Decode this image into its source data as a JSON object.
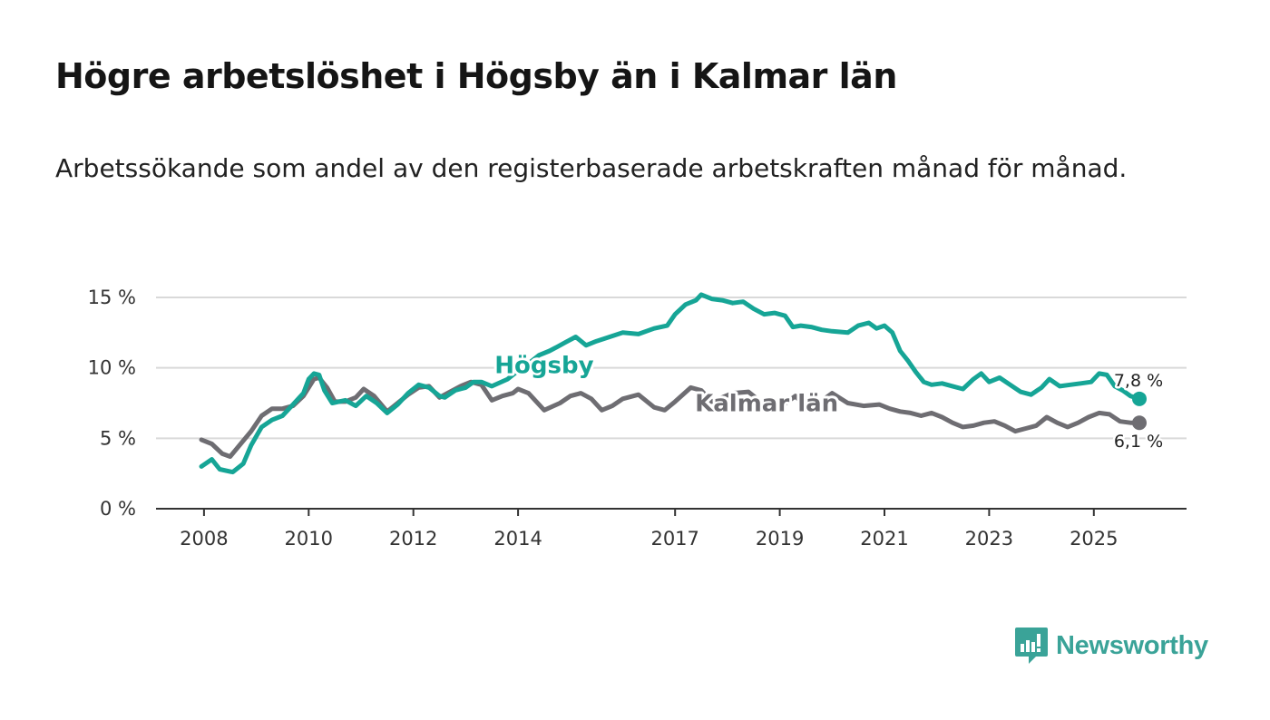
{
  "title": "Högre arbetslöshet i Högsby än i Kalmar län",
  "subtitle": "Arbetssökande som andel av den registerbaserade arbetskraften månad för månad.",
  "brand": {
    "name": "Newsworthy",
    "icon": "newsworthy-logo-icon"
  },
  "colors": {
    "hogsby": "#16a596",
    "kalmar": "#6e6d72",
    "grid": "#d9d9d9",
    "axis": "#333333"
  },
  "chart_data": {
    "type": "line",
    "title": "Högre arbetslöshet i Högsby än i Kalmar län",
    "xlabel": "",
    "ylabel": "",
    "xlim": [
      2007.95,
      2025.87
    ],
    "ylim": [
      0,
      15
    ],
    "y_ticks": [
      0,
      5,
      10,
      15
    ],
    "y_tick_labels": [
      "0 %",
      "5 %",
      "10 %",
      "15 %"
    ],
    "x_ticks": [
      2008,
      2010,
      2012,
      2014,
      2017,
      2019,
      2021,
      2023,
      2025
    ],
    "x_tick_labels": [
      "2008",
      "2010",
      "2012",
      "2014",
      "2017",
      "2019",
      "2021",
      "2023",
      "2025"
    ],
    "grid": true,
    "series": [
      {
        "name": "Högsby",
        "end_label": "7,8 %",
        "points": [
          [
            2007.95,
            3.0
          ],
          [
            2008.15,
            3.5
          ],
          [
            2008.3,
            2.8
          ],
          [
            2008.55,
            2.6
          ],
          [
            2008.75,
            3.2
          ],
          [
            2008.9,
            4.5
          ],
          [
            2009.1,
            5.8
          ],
          [
            2009.3,
            6.3
          ],
          [
            2009.5,
            6.6
          ],
          [
            2009.7,
            7.4
          ],
          [
            2009.9,
            8.2
          ],
          [
            2010.0,
            9.2
          ],
          [
            2010.1,
            9.6
          ],
          [
            2010.2,
            9.5
          ],
          [
            2010.3,
            8.4
          ],
          [
            2010.45,
            7.5
          ],
          [
            2010.7,
            7.7
          ],
          [
            2010.9,
            7.3
          ],
          [
            2011.1,
            8.0
          ],
          [
            2011.3,
            7.5
          ],
          [
            2011.5,
            6.8
          ],
          [
            2011.7,
            7.4
          ],
          [
            2011.9,
            8.2
          ],
          [
            2012.1,
            8.8
          ],
          [
            2012.3,
            8.6
          ],
          [
            2012.5,
            8.0
          ],
          [
            2012.6,
            7.9
          ],
          [
            2012.8,
            8.4
          ],
          [
            2013.0,
            8.6
          ],
          [
            2013.15,
            9.0
          ],
          [
            2013.3,
            9.0
          ],
          [
            2013.5,
            8.7
          ],
          [
            2013.8,
            9.2
          ],
          [
            2014.0,
            9.8
          ],
          [
            2014.2,
            10.3
          ],
          [
            2014.4,
            10.9
          ],
          [
            2014.6,
            11.2
          ],
          [
            2014.75,
            11.5
          ],
          [
            2014.9,
            11.8
          ],
          [
            2015.1,
            12.2
          ],
          [
            2015.3,
            11.6
          ],
          [
            2015.5,
            11.9
          ],
          [
            2015.75,
            12.2
          ],
          [
            2016.0,
            12.5
          ],
          [
            2016.3,
            12.4
          ],
          [
            2016.6,
            12.8
          ],
          [
            2016.85,
            13.0
          ],
          [
            2017.0,
            13.8
          ],
          [
            2017.2,
            14.5
          ],
          [
            2017.4,
            14.8
          ],
          [
            2017.5,
            15.2
          ],
          [
            2017.7,
            14.9
          ],
          [
            2017.9,
            14.8
          ],
          [
            2018.1,
            14.6
          ],
          [
            2018.3,
            14.7
          ],
          [
            2018.5,
            14.2
          ],
          [
            2018.7,
            13.8
          ],
          [
            2018.9,
            13.9
          ],
          [
            2019.1,
            13.7
          ],
          [
            2019.25,
            12.9
          ],
          [
            2019.4,
            13.0
          ],
          [
            2019.6,
            12.9
          ],
          [
            2019.8,
            12.7
          ],
          [
            2020.0,
            12.6
          ],
          [
            2020.3,
            12.5
          ],
          [
            2020.5,
            13.0
          ],
          [
            2020.7,
            13.2
          ],
          [
            2020.85,
            12.8
          ],
          [
            2021.0,
            13.0
          ],
          [
            2021.15,
            12.5
          ],
          [
            2021.3,
            11.2
          ],
          [
            2021.45,
            10.5
          ],
          [
            2021.6,
            9.7
          ],
          [
            2021.75,
            9.0
          ],
          [
            2021.9,
            8.8
          ],
          [
            2022.1,
            8.9
          ],
          [
            2022.3,
            8.7
          ],
          [
            2022.5,
            8.5
          ],
          [
            2022.7,
            9.2
          ],
          [
            2022.85,
            9.6
          ],
          [
            2023.0,
            9.0
          ],
          [
            2023.2,
            9.3
          ],
          [
            2023.4,
            8.8
          ],
          [
            2023.6,
            8.3
          ],
          [
            2023.8,
            8.1
          ],
          [
            2024.0,
            8.6
          ],
          [
            2024.15,
            9.2
          ],
          [
            2024.35,
            8.7
          ],
          [
            2024.55,
            8.8
          ],
          [
            2024.75,
            8.9
          ],
          [
            2024.95,
            9.0
          ],
          [
            2025.1,
            9.6
          ],
          [
            2025.25,
            9.5
          ],
          [
            2025.4,
            8.7
          ],
          [
            2025.55,
            8.4
          ],
          [
            2025.7,
            8.0
          ],
          [
            2025.87,
            7.8
          ]
        ]
      },
      {
        "name": "Kalmar län",
        "end_label": "6,1 %",
        "points": [
          [
            2007.95,
            4.9
          ],
          [
            2008.15,
            4.6
          ],
          [
            2008.35,
            3.9
          ],
          [
            2008.5,
            3.7
          ],
          [
            2008.7,
            4.6
          ],
          [
            2008.9,
            5.5
          ],
          [
            2009.1,
            6.6
          ],
          [
            2009.3,
            7.1
          ],
          [
            2009.5,
            7.1
          ],
          [
            2009.7,
            7.3
          ],
          [
            2009.9,
            8.0
          ],
          [
            2010.1,
            9.2
          ],
          [
            2010.2,
            9.3
          ],
          [
            2010.35,
            8.6
          ],
          [
            2010.5,
            7.6
          ],
          [
            2010.7,
            7.6
          ],
          [
            2010.9,
            7.9
          ],
          [
            2011.05,
            8.5
          ],
          [
            2011.25,
            8.0
          ],
          [
            2011.5,
            6.9
          ],
          [
            2011.7,
            7.5
          ],
          [
            2011.9,
            8.1
          ],
          [
            2012.1,
            8.6
          ],
          [
            2012.3,
            8.7
          ],
          [
            2012.5,
            7.9
          ],
          [
            2012.7,
            8.3
          ],
          [
            2012.9,
            8.7
          ],
          [
            2013.1,
            9.0
          ],
          [
            2013.3,
            8.8
          ],
          [
            2013.5,
            7.7
          ],
          [
            2013.7,
            8.0
          ],
          [
            2013.9,
            8.2
          ],
          [
            2014.0,
            8.5
          ],
          [
            2014.2,
            8.2
          ],
          [
            2014.5,
            7.0
          ],
          [
            2014.8,
            7.5
          ],
          [
            2015.0,
            8.0
          ],
          [
            2015.2,
            8.2
          ],
          [
            2015.4,
            7.8
          ],
          [
            2015.6,
            7.0
          ],
          [
            2015.8,
            7.3
          ],
          [
            2016.0,
            7.8
          ],
          [
            2016.3,
            8.1
          ],
          [
            2016.6,
            7.2
          ],
          [
            2016.8,
            7.0
          ],
          [
            2017.0,
            7.6
          ],
          [
            2017.3,
            8.6
          ],
          [
            2017.5,
            8.4
          ],
          [
            2017.7,
            7.6
          ],
          [
            2017.9,
            7.9
          ],
          [
            2018.1,
            8.2
          ],
          [
            2018.4,
            8.3
          ],
          [
            2018.6,
            7.7
          ],
          [
            2018.8,
            7.0
          ],
          [
            2019.0,
            7.2
          ],
          [
            2019.3,
            8.0
          ],
          [
            2019.5,
            7.2
          ],
          [
            2019.7,
            7.4
          ],
          [
            2020.0,
            8.2
          ],
          [
            2020.3,
            7.5
          ],
          [
            2020.6,
            7.3
          ],
          [
            2020.9,
            7.4
          ],
          [
            2021.1,
            7.1
          ],
          [
            2021.3,
            6.9
          ],
          [
            2021.5,
            6.8
          ],
          [
            2021.7,
            6.6
          ],
          [
            2021.9,
            6.8
          ],
          [
            2022.1,
            6.5
          ],
          [
            2022.3,
            6.1
          ],
          [
            2022.5,
            5.8
          ],
          [
            2022.7,
            5.9
          ],
          [
            2022.9,
            6.1
          ],
          [
            2023.1,
            6.2
          ],
          [
            2023.3,
            5.9
          ],
          [
            2023.5,
            5.5
          ],
          [
            2023.7,
            5.7
          ],
          [
            2023.9,
            5.9
          ],
          [
            2024.1,
            6.5
          ],
          [
            2024.3,
            6.1
          ],
          [
            2024.5,
            5.8
          ],
          [
            2024.7,
            6.1
          ],
          [
            2024.9,
            6.5
          ],
          [
            2025.1,
            6.8
          ],
          [
            2025.3,
            6.7
          ],
          [
            2025.5,
            6.2
          ],
          [
            2025.7,
            6.1
          ],
          [
            2025.87,
            6.1
          ]
        ]
      }
    ],
    "annotations": [
      {
        "series": "Högsby",
        "text": "Högsby",
        "at_x": 2014.5,
        "at_y": 10.2
      },
      {
        "series": "Kalmar län",
        "text": "Kalmar län",
        "at_x": 2018.75,
        "at_y": 7.5
      }
    ]
  }
}
